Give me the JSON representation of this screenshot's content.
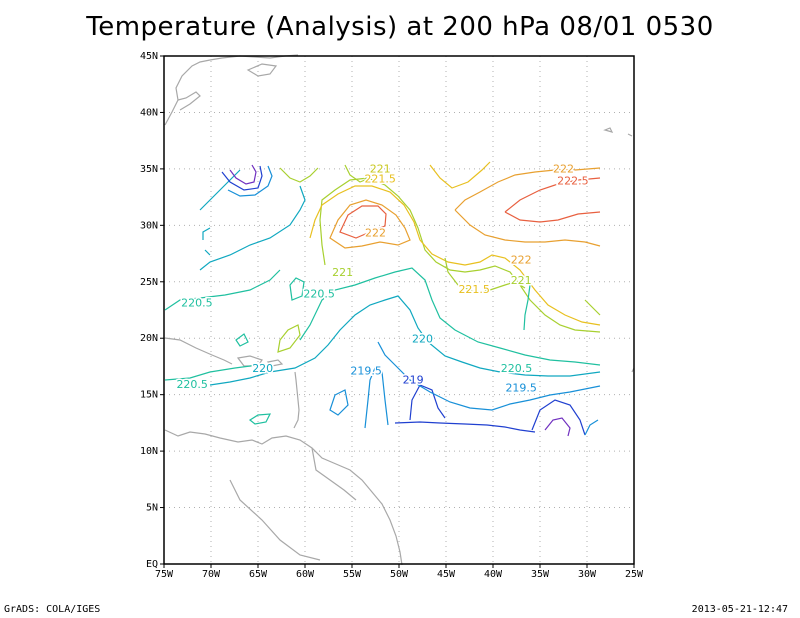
{
  "title": "Temperature (Analysis) at 200 hPa 08/01 0530",
  "footer": {
    "left": "GrADS: COLA/IGES",
    "right": "2013-05-21-12:47"
  },
  "map": {
    "lon_range": [
      -75,
      -25
    ],
    "lat_range": [
      0,
      45
    ],
    "x_ticks": [
      "75W",
      "70W",
      "65W",
      "60W",
      "55W",
      "50W",
      "45W",
      "40W",
      "35W",
      "30W",
      "25W"
    ],
    "y_ticks": [
      "EQ",
      "5N",
      "10N",
      "15N",
      "20N",
      "25N",
      "30N",
      "35N",
      "40N",
      "45N"
    ],
    "grid": true,
    "land_color": "#a8a8a8",
    "contour_labels": [
      {
        "text": "221",
        "color": "#c8c820",
        "lon": -52,
        "lat": 34.7
      },
      {
        "text": "221.5",
        "color": "#e8c020",
        "lon": -52,
        "lat": 33.8
      },
      {
        "text": "222",
        "color": "#e8a030",
        "lon": -52.5,
        "lat": 29
      },
      {
        "text": "222",
        "color": "#e8a030",
        "lon": -32.5,
        "lat": 34.7
      },
      {
        "text": "222.5",
        "color": "#e86040",
        "lon": -31.5,
        "lat": 33.6
      },
      {
        "text": "222",
        "color": "#e8a030",
        "lon": -37,
        "lat": 26.6
      },
      {
        "text": "221",
        "color": "#a8d030",
        "lon": -56,
        "lat": 25.5
      },
      {
        "text": "221.5",
        "color": "#e8c020",
        "lon": -42,
        "lat": 24
      },
      {
        "text": "221",
        "color": "#a8d030",
        "lon": -37,
        "lat": 24.8
      },
      {
        "text": "220.5",
        "color": "#20c0a0",
        "lon": -58.5,
        "lat": 23.6
      },
      {
        "text": "220.5",
        "color": "#20c0a0",
        "lon": -71.5,
        "lat": 22.8
      },
      {
        "text": "220",
        "color": "#10a8c0",
        "lon": -47.5,
        "lat": 19.6
      },
      {
        "text": "220.5",
        "color": "#20c0a0",
        "lon": -37.5,
        "lat": 17
      },
      {
        "text": "219.5",
        "color": "#1890d8",
        "lon": -53.5,
        "lat": 16.8
      },
      {
        "text": "220",
        "color": "#10a8c0",
        "lon": -64.5,
        "lat": 17
      },
      {
        "text": "220.5",
        "color": "#20c0a0",
        "lon": -72,
        "lat": 15.6
      },
      {
        "text": "219",
        "color": "#2040d0",
        "lon": -48.5,
        "lat": 16
      },
      {
        "text": "219.5",
        "color": "#1890d8",
        "lon": -37,
        "lat": 15.3
      }
    ]
  }
}
